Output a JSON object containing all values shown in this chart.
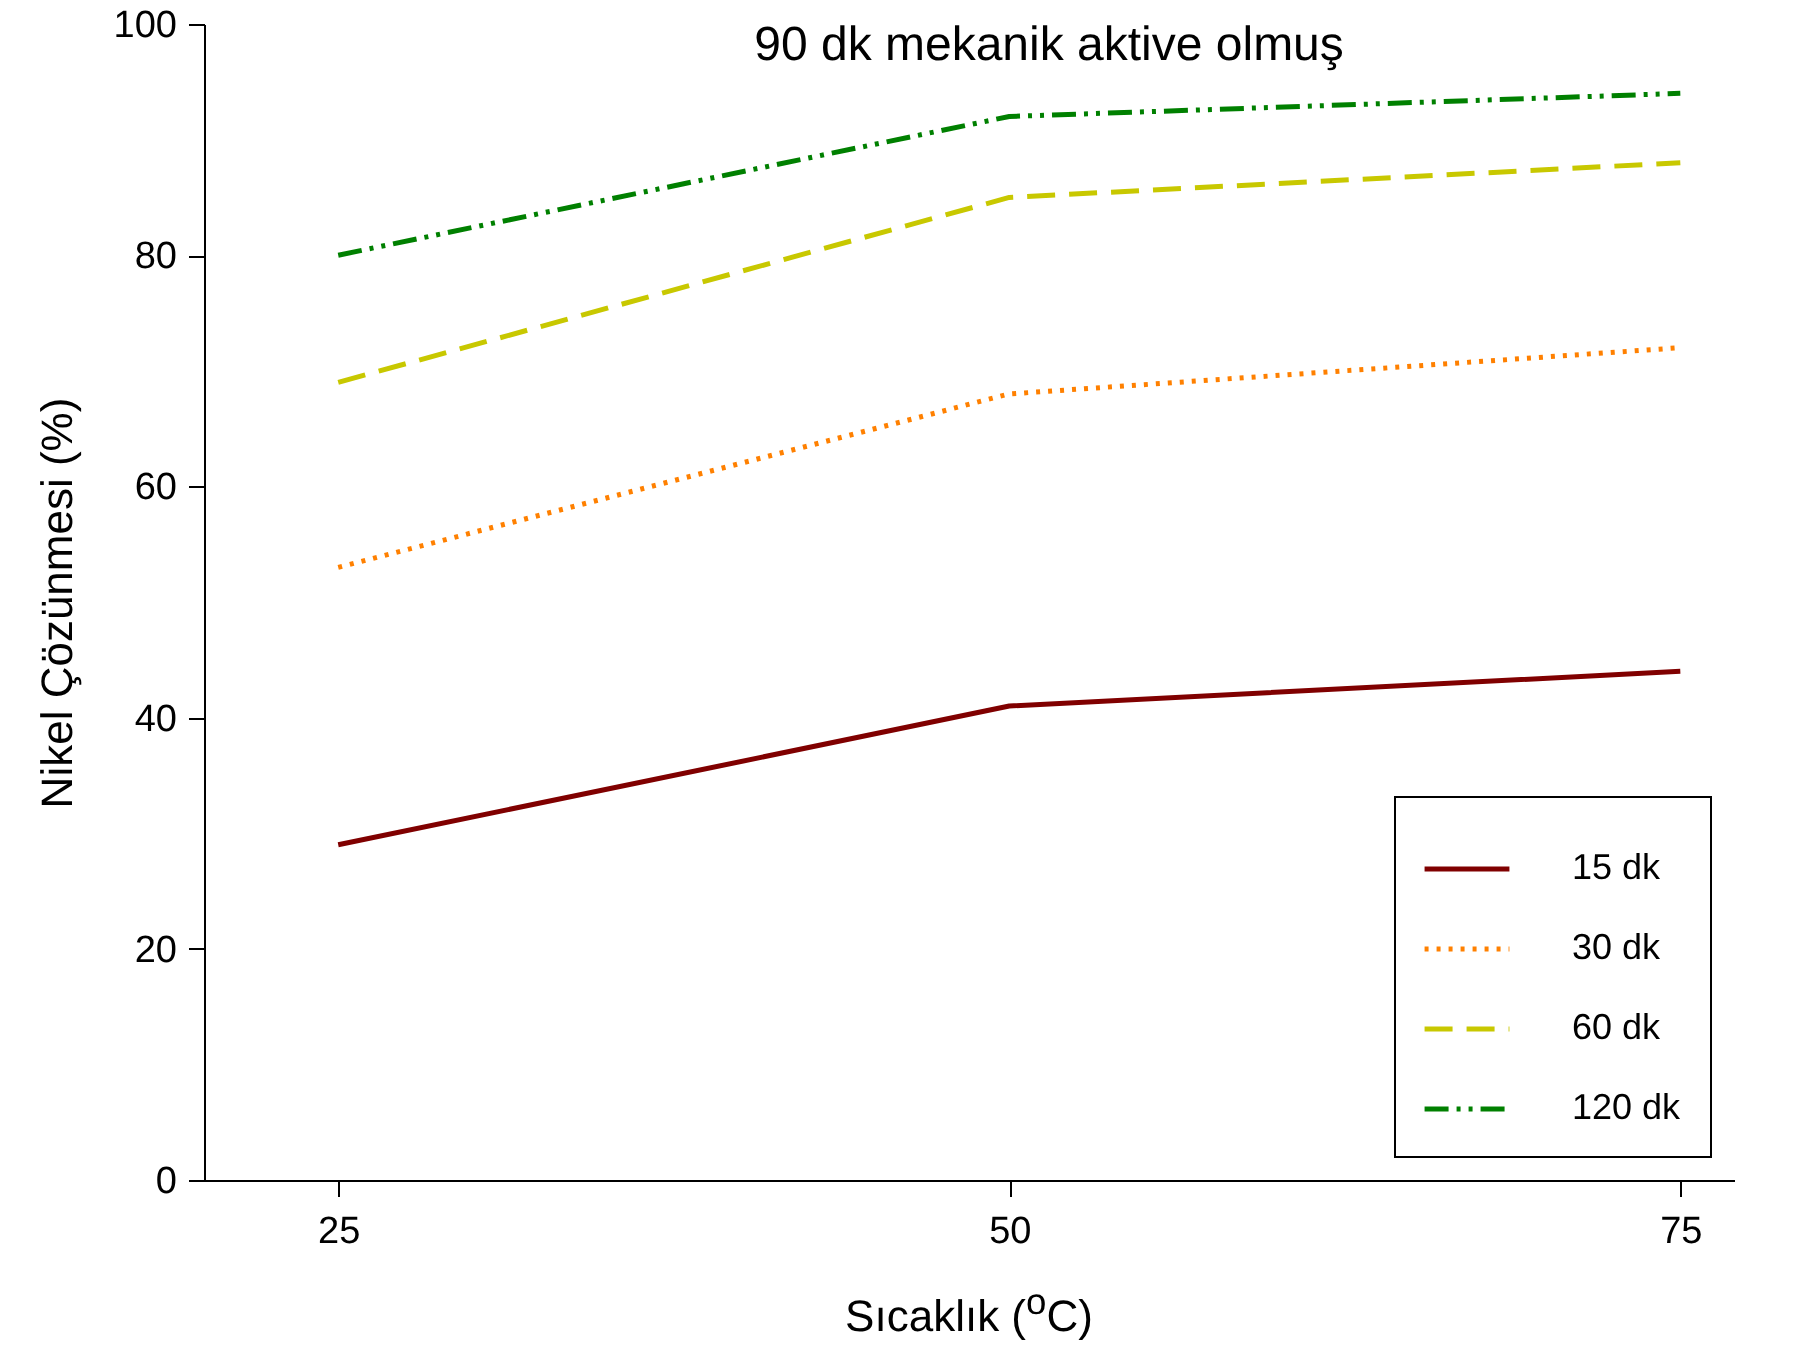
{
  "chart_data": {
    "type": "line",
    "title": "90 dk mekanik aktive olmuş",
    "xlabel": "Sıcaklık ($^{o}$C)",
    "ylabel": "Nikel Çözünmesi (%)",
    "x": [
      25,
      50,
      75
    ],
    "xlim": [
      20,
      77
    ],
    "xticks": [
      25,
      50,
      75
    ],
    "ylim": [
      0,
      100
    ],
    "yticks": [
      0,
      20,
      40,
      60,
      80,
      100
    ],
    "series": [
      {
        "name": "15 dk",
        "color": "#800000",
        "line_style": "solid",
        "values": [
          29,
          41,
          44
        ]
      },
      {
        "name": "30 dk",
        "color": "#ff8000",
        "line_style": "dotted",
        "values": [
          53,
          68,
          72
        ]
      },
      {
        "name": "60 dk",
        "color": "#c8c800",
        "line_style": "dashed",
        "values": [
          69,
          85,
          88
        ]
      },
      {
        "name": "120 dk",
        "color": "#008000",
        "line_style": "dashdot",
        "values": [
          80,
          92,
          94
        ]
      }
    ],
    "legend": "bottom right",
    "grid": false,
    "marker": "none"
  }
}
